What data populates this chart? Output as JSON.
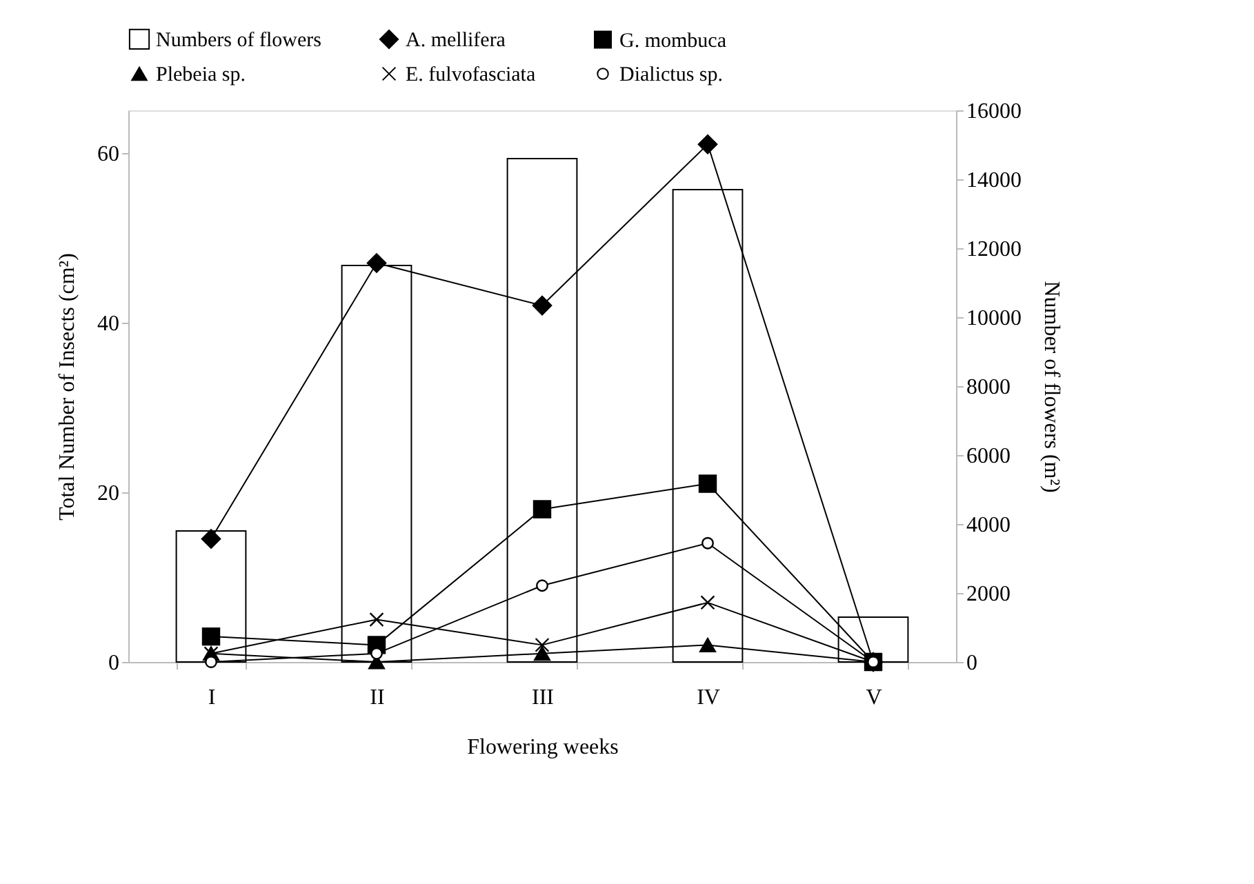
{
  "chart_data": {
    "type": "bar",
    "categories": [
      "I",
      "II",
      "III",
      "IV",
      "V"
    ],
    "xlabel": "Flowering weeks",
    "ylabel": "Total Number of Insects (cm²)",
    "y2label": "Number of flowers (m²)",
    "ylim": [
      0,
      65
    ],
    "yticks": [
      0,
      20,
      40,
      60
    ],
    "y2lim": [
      0,
      16000
    ],
    "y2ticks": [
      0,
      2000,
      4000,
      6000,
      8000,
      10000,
      12000,
      14000,
      16000
    ],
    "grid": false,
    "legend": "top",
    "series": [
      {
        "name": "Numbers of flowers",
        "axis": "y2",
        "color": "#ffffff",
        "values": [
          3800,
          11500,
          14600,
          13700,
          1300
        ]
      },
      {
        "name": "A. mellifera",
        "type": "line",
        "marker": "diamond",
        "color": "#000000",
        "values": [
          14.5,
          47,
          42,
          61,
          0
        ]
      },
      {
        "name": "G. mombuca",
        "type": "line",
        "marker": "square",
        "color": "#000000",
        "values": [
          3,
          2,
          18,
          21,
          0
        ]
      },
      {
        "name": "Plebeia sp.",
        "type": "line",
        "marker": "triangle",
        "color": "#000000",
        "values": [
          1,
          0,
          1,
          2,
          0
        ]
      },
      {
        "name": "E. fulvofasciata",
        "type": "line",
        "marker": "cross",
        "color": "#000000",
        "values": [
          1,
          5,
          2,
          7,
          0
        ]
      },
      {
        "name": "Dialictus sp.",
        "type": "line",
        "marker": "circle",
        "color": "#000000",
        "values": [
          0,
          1,
          9,
          14,
          0
        ]
      }
    ]
  }
}
